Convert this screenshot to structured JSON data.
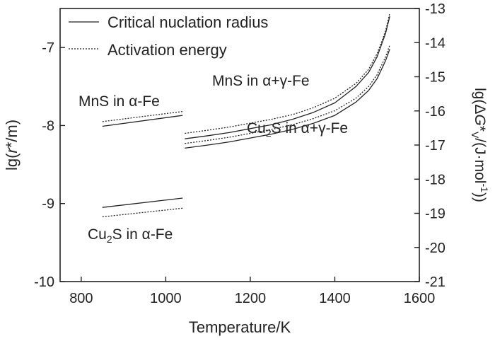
{
  "chart_data": {
    "type": "line",
    "xlabel": "Temperature/K",
    "ylabel_left": "lg(r*/m)",
    "ylabel_right": "lg(ΔG*V/(J·mol-1))",
    "xlim": [
      750,
      1600
    ],
    "ylim_left": [
      -10,
      -6.5
    ],
    "ylim_right": [
      -21,
      -13
    ],
    "x_ticks": [
      800,
      1000,
      1200,
      1400,
      1600
    ],
    "y_ticks_left": [
      -10,
      -9,
      -8,
      -7
    ],
    "y_ticks_right": [
      -21,
      -20,
      -19,
      -18,
      -17,
      -16,
      -15,
      -14,
      -13
    ],
    "grid": false,
    "legend_position": "top-left",
    "legend": [
      {
        "label": "Critical nuclation radius",
        "style": "solid"
      },
      {
        "label": "Activation energy",
        "style": "dotted"
      }
    ],
    "annotations": [
      {
        "text": "MnS in α-Fe",
        "at": [
          850,
          -7.72
        ]
      },
      {
        "text": "Cu2S in α-Fe",
        "at": [
          865,
          -9.42
        ]
      },
      {
        "text": "MnS in α+γ-Fe",
        "at": [
          1130,
          -7.55
        ]
      },
      {
        "text": "Cu2S in α+γ-Fe",
        "at": [
          1330,
          -8.33
        ]
      }
    ],
    "series": [
      {
        "style": "solid",
        "axis": "left",
        "points": [
          [
            850,
            -8.01
          ],
          [
            1040,
            -7.87
          ]
        ]
      },
      {
        "style": "dotted",
        "axis": "left",
        "points": [
          [
            850,
            -7.95
          ],
          [
            1040,
            -7.82
          ]
        ]
      },
      {
        "style": "solid",
        "axis": "left",
        "points": [
          [
            850,
            -9.05
          ],
          [
            1040,
            -8.93
          ]
        ]
      },
      {
        "style": "dotted",
        "axis": "left",
        "points": [
          [
            850,
            -9.17
          ],
          [
            1040,
            -9.06
          ]
        ]
      },
      {
        "style": "solid",
        "axis": "left",
        "points": [
          [
            1045,
            -8.17
          ],
          [
            1100,
            -8.13
          ],
          [
            1150,
            -8.09
          ],
          [
            1200,
            -8.04
          ],
          [
            1250,
            -7.99
          ],
          [
            1300,
            -7.92
          ],
          [
            1350,
            -7.83
          ],
          [
            1400,
            -7.71
          ],
          [
            1450,
            -7.5
          ],
          [
            1480,
            -7.32
          ],
          [
            1500,
            -7.12
          ],
          [
            1520,
            -6.82
          ],
          [
            1530,
            -6.6
          ]
        ]
      },
      {
        "style": "dotted",
        "axis": "left",
        "points": [
          [
            1045,
            -8.1
          ],
          [
            1100,
            -8.06
          ],
          [
            1150,
            -8.02
          ],
          [
            1200,
            -7.97
          ],
          [
            1250,
            -7.92
          ],
          [
            1300,
            -7.86
          ],
          [
            1350,
            -7.77
          ],
          [
            1400,
            -7.65
          ],
          [
            1450,
            -7.46
          ],
          [
            1480,
            -7.28
          ],
          [
            1500,
            -7.08
          ],
          [
            1520,
            -6.79
          ],
          [
            1530,
            -6.56
          ]
        ]
      },
      {
        "style": "solid",
        "axis": "left",
        "points": [
          [
            1045,
            -8.29
          ],
          [
            1100,
            -8.25
          ],
          [
            1150,
            -8.21
          ],
          [
            1200,
            -8.16
          ],
          [
            1250,
            -8.11
          ],
          [
            1300,
            -8.05
          ],
          [
            1350,
            -7.97
          ],
          [
            1400,
            -7.87
          ],
          [
            1450,
            -7.7
          ],
          [
            1480,
            -7.55
          ],
          [
            1500,
            -7.4
          ],
          [
            1520,
            -7.17
          ],
          [
            1530,
            -7.02
          ]
        ]
      },
      {
        "style": "dotted",
        "axis": "left",
        "points": [
          [
            1045,
            -8.23
          ],
          [
            1100,
            -8.19
          ],
          [
            1150,
            -8.15
          ],
          [
            1200,
            -8.1
          ],
          [
            1250,
            -8.05
          ],
          [
            1300,
            -7.99
          ],
          [
            1350,
            -7.91
          ],
          [
            1400,
            -7.81
          ],
          [
            1450,
            -7.65
          ],
          [
            1480,
            -7.5
          ],
          [
            1500,
            -7.35
          ],
          [
            1520,
            -7.12
          ],
          [
            1530,
            -6.97
          ]
        ]
      }
    ]
  }
}
